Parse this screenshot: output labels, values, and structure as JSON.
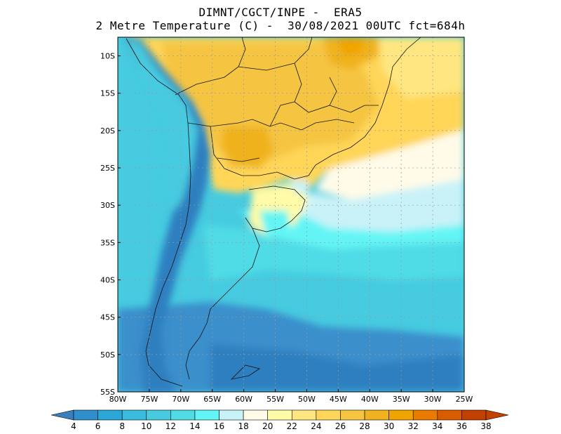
{
  "title": {
    "line1": "DIMNT/CGCT/INPE -  ERA5",
    "line2": "2 Metre Temperature (C) -  30/08/2021 00UTC fct=684h"
  },
  "map": {
    "lon_range": [
      -80,
      -25
    ],
    "lat_range": [
      -55,
      -7.5
    ],
    "grid": true,
    "lon_ticks": [
      {
        "value": -80,
        "label": "80W"
      },
      {
        "value": -75,
        "label": "75W"
      },
      {
        "value": -70,
        "label": "70W"
      },
      {
        "value": -65,
        "label": "65W"
      },
      {
        "value": -60,
        "label": "60W"
      },
      {
        "value": -55,
        "label": "55W"
      },
      {
        "value": -50,
        "label": "50W"
      },
      {
        "value": -45,
        "label": "45W"
      },
      {
        "value": -40,
        "label": "40W"
      },
      {
        "value": -35,
        "label": "35W"
      },
      {
        "value": -30,
        "label": "30W"
      },
      {
        "value": -25,
        "label": "25W"
      }
    ],
    "lat_ticks": [
      {
        "value": -10,
        "label": "10S"
      },
      {
        "value": -15,
        "label": "15S"
      },
      {
        "value": -20,
        "label": "20S"
      },
      {
        "value": -25,
        "label": "25S"
      },
      {
        "value": -30,
        "label": "30S"
      },
      {
        "value": -35,
        "label": "35S"
      },
      {
        "value": -40,
        "label": "40S"
      },
      {
        "value": -45,
        "label": "45S"
      },
      {
        "value": -50,
        "label": "50S"
      },
      {
        "value": -55,
        "label": "55S"
      }
    ]
  },
  "colorbar": {
    "labels": [
      "4",
      "6",
      "8",
      "10",
      "12",
      "14",
      "16",
      "18",
      "20",
      "22",
      "24",
      "26",
      "28",
      "30",
      "32",
      "34",
      "36",
      "38"
    ],
    "colors": [
      "#3a7fbd",
      "#2f8fcb",
      "#2aa7d6",
      "#3cbcdc",
      "#46cbe0",
      "#50dce6",
      "#63f5f5",
      "#c9f2f8",
      "#fffbe8",
      "#fffba6",
      "#ffe680",
      "#ffd659",
      "#f5c542",
      "#f0b21e",
      "#f0a400",
      "#eb7a00",
      "#d95c00",
      "#c24000"
    ]
  }
}
